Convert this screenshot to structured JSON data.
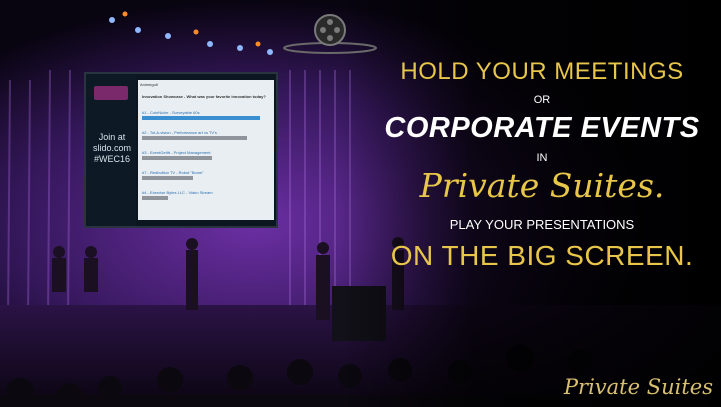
{
  "screen": {
    "brand_badge": "WEC",
    "header_label": "Animegult",
    "join_text": "Join at\nslido.com\n#WEC16",
    "poll_title": "Innovation Showcase - What was your favorite innovation today?",
    "rows": [
      {
        "label": "#1 - CoinNiche - Surveyable 60s",
        "fill": 0.92,
        "color": "#3a8fd0"
      },
      {
        "label": "#2 - ToLA-vision - Performance art vs TV's",
        "fill": 0.82,
        "color": "#8f959a"
      },
      {
        "label": "#3 - EventGetItt - Project Management",
        "fill": 0.55,
        "color": "#8f959a"
      },
      {
        "label": "#7 - Redbullion TV - Robot \"Boom\"",
        "fill": 0.4,
        "color": "#8f959a"
      },
      {
        "label": "#4 - Exercise Bytes LLC - Video Stream",
        "fill": 0.2,
        "color": "#8f959a"
      }
    ]
  },
  "headline": {
    "line1": "HOLD YOUR MEETINGS",
    "line2": "OR",
    "line3": "CORPORATE EVENTS",
    "line4": "IN",
    "line5": "Private Suites.",
    "line6": "PLAY YOUR PRESENTATIONS",
    "line7": "ON THE BIG SCREEN."
  },
  "brand": "Private Suites",
  "colors": {
    "gold": "#e7c64a",
    "white": "#ffffff",
    "stage_purple": "#5a2a8a",
    "screen_blue": "#3a8fd0"
  },
  "icons": [
    "film-reel-icon"
  ]
}
